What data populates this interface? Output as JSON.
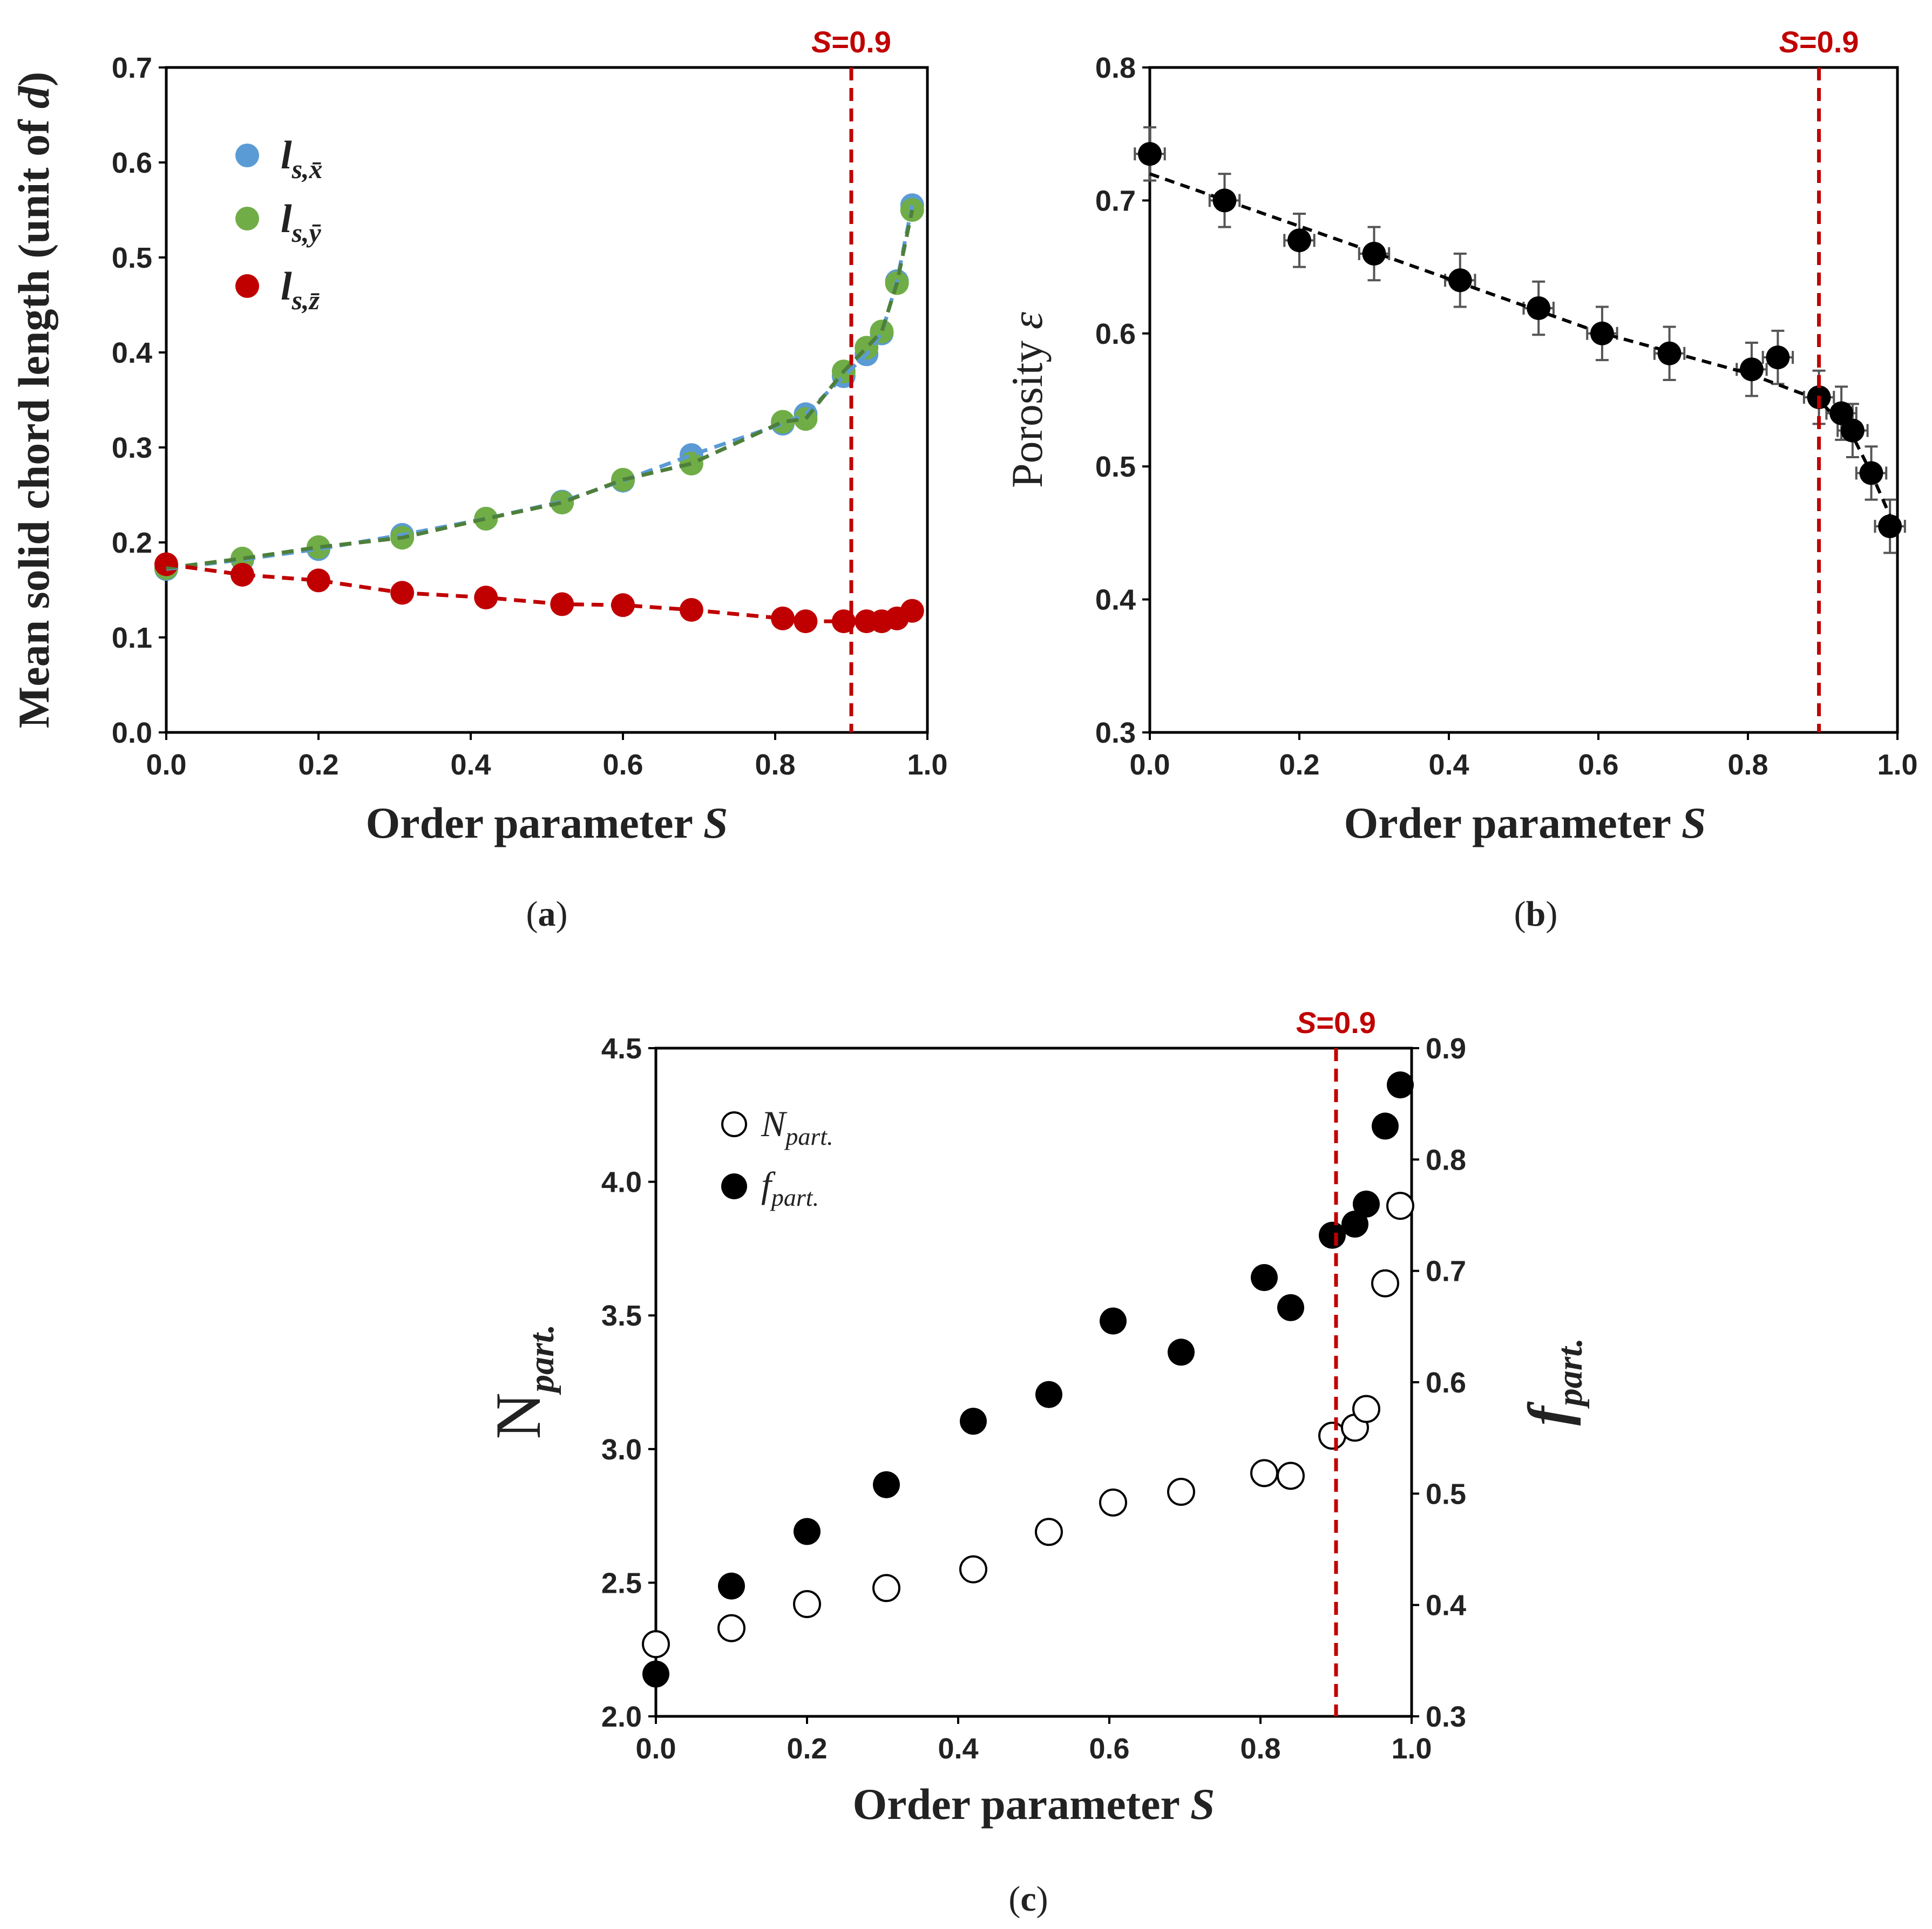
{
  "chart_data": [
    {
      "id": "a",
      "type": "scatter",
      "caption": "a",
      "xlabel": "Order parameter",
      "xlabel_var": "S",
      "ylabel": "Mean solid chord length (unit of",
      "ylabel_var": "d",
      "ylabel_close": ")",
      "xlim": [
        0,
        1
      ],
      "ylim": [
        0,
        0.7
      ],
      "xticks": [
        "0.0",
        "0.2",
        "0.4",
        "0.6",
        "0.8",
        "1.0"
      ],
      "yticks": [
        "0.0",
        "0.1",
        "0.2",
        "0.3",
        "0.4",
        "0.5",
        "0.6",
        "0.7"
      ],
      "vline": {
        "x": 0.9,
        "label_var": "S",
        "label_rest": "=0.9",
        "color": "#c00000"
      },
      "legend_position": "top-left",
      "series": [
        {
          "name": "l",
          "sub": "s,x̄",
          "color": "#5b9bd5",
          "x": [
            0,
            0.1,
            0.2,
            0.31,
            0.42,
            0.52,
            0.6,
            0.69,
            0.81,
            0.84,
            0.89,
            0.92,
            0.94,
            0.96,
            0.98
          ],
          "y": [
            0.172,
            0.182,
            0.193,
            0.208,
            0.225,
            0.243,
            0.265,
            0.292,
            0.325,
            0.335,
            0.375,
            0.398,
            0.42,
            0.475,
            0.555
          ]
        },
        {
          "name": "l",
          "sub": "s,ȳ",
          "color": "#70ad47",
          "x": [
            0,
            0.1,
            0.2,
            0.31,
            0.42,
            0.52,
            0.6,
            0.69,
            0.81,
            0.84,
            0.89,
            0.92,
            0.94,
            0.96,
            0.98
          ],
          "y": [
            0.173,
            0.183,
            0.195,
            0.205,
            0.225,
            0.242,
            0.266,
            0.283,
            0.327,
            0.33,
            0.38,
            0.405,
            0.422,
            0.473,
            0.55
          ]
        },
        {
          "name": "l",
          "sub": "s,z̄",
          "color": "#c00000",
          "x": [
            0,
            0.1,
            0.2,
            0.31,
            0.42,
            0.52,
            0.6,
            0.69,
            0.81,
            0.84,
            0.89,
            0.92,
            0.94,
            0.96,
            0.98
          ],
          "y": [
            0.177,
            0.166,
            0.16,
            0.147,
            0.142,
            0.135,
            0.134,
            0.129,
            0.12,
            0.117,
            0.117,
            0.117,
            0.117,
            0.12,
            0.128
          ]
        }
      ]
    },
    {
      "id": "b",
      "type": "scatter",
      "caption": "b",
      "xlabel": "Order parameter",
      "xlabel_var": "S",
      "ylabel": "Porosity",
      "ylabel_var": "ε",
      "xlim": [
        0,
        1
      ],
      "ylim": [
        0.3,
        0.8
      ],
      "xticks": [
        "0.0",
        "0.2",
        "0.4",
        "0.6",
        "0.8",
        "1.0"
      ],
      "yticks": [
        "0.3",
        "0.4",
        "0.5",
        "0.6",
        "0.7",
        "0.8"
      ],
      "vline": {
        "x": 0.895,
        "label_var": "S",
        "label_rest": "=0.9",
        "color": "#c00000"
      },
      "series": [
        {
          "name": "porosity",
          "color": "#000000",
          "x": [
            0,
            0.1,
            0.2,
            0.3,
            0.415,
            0.52,
            0.605,
            0.695,
            0.805,
            0.84,
            0.895,
            0.925,
            0.94,
            0.965,
            0.99
          ],
          "y": [
            0.735,
            0.7,
            0.67,
            0.66,
            0.64,
            0.619,
            0.6,
            0.585,
            0.573,
            0.582,
            0.552,
            0.54,
            0.527,
            0.495,
            0.455
          ],
          "yerr": 0.02,
          "xerr": 0.02
        }
      ],
      "trend": {
        "x": [
          0,
          0.3,
          0.6,
          0.8,
          0.895,
          0.94,
          0.965,
          1.0
        ],
        "y": [
          0.72,
          0.661,
          0.601,
          0.57,
          0.55,
          0.523,
          0.495,
          0.45
        ]
      }
    },
    {
      "id": "c",
      "type": "scatter",
      "caption": "c",
      "xlabel": "Order parameter",
      "xlabel_var": "S",
      "ylabel_left": "N",
      "ylabel_left_sub": "part.",
      "ylabel_right": "f",
      "ylabel_right_sub": "part.",
      "xlim": [
        0,
        1
      ],
      "ylim_left": [
        2.0,
        4.5
      ],
      "ylim_right": [
        0.3,
        0.9
      ],
      "xticks": [
        "0.0",
        "0.2",
        "0.4",
        "0.6",
        "0.8",
        "1.0"
      ],
      "yticks_left": [
        "2.0",
        "2.5",
        "3.0",
        "3.5",
        "4.0",
        "4.5"
      ],
      "yticks_right": [
        "0.3",
        "0.4",
        "0.5",
        "0.6",
        "0.7",
        "0.8",
        "0.9"
      ],
      "vline": {
        "x": 0.9,
        "label_var": "S",
        "label_rest": "=0.9",
        "color": "#c00000"
      },
      "legend_position": "top-left",
      "series": [
        {
          "name": "N",
          "sub": "part.",
          "marker": "open",
          "axis": "left",
          "x": [
            0,
            0.1,
            0.2,
            0.305,
            0.42,
            0.52,
            0.605,
            0.695,
            0.805,
            0.84,
            0.895,
            0.925,
            0.94,
            0.965,
            0.985
          ],
          "y": [
            2.27,
            2.33,
            2.42,
            2.48,
            2.55,
            2.69,
            2.8,
            2.84,
            2.91,
            2.9,
            3.05,
            3.08,
            3.15,
            3.62,
            3.91
          ]
        },
        {
          "name": "f",
          "sub": "part.",
          "marker": "filled",
          "axis": "right",
          "x": [
            0,
            0.1,
            0.2,
            0.305,
            0.42,
            0.52,
            0.605,
            0.695,
            0.805,
            0.84,
            0.895,
            0.925,
            0.94,
            0.965,
            0.985
          ],
          "y": [
            0.338,
            0.417,
            0.466,
            0.508,
            0.565,
            0.589,
            0.655,
            0.627,
            0.694,
            0.667,
            0.732,
            0.742,
            0.76,
            0.83,
            0.867
          ]
        }
      ]
    }
  ]
}
